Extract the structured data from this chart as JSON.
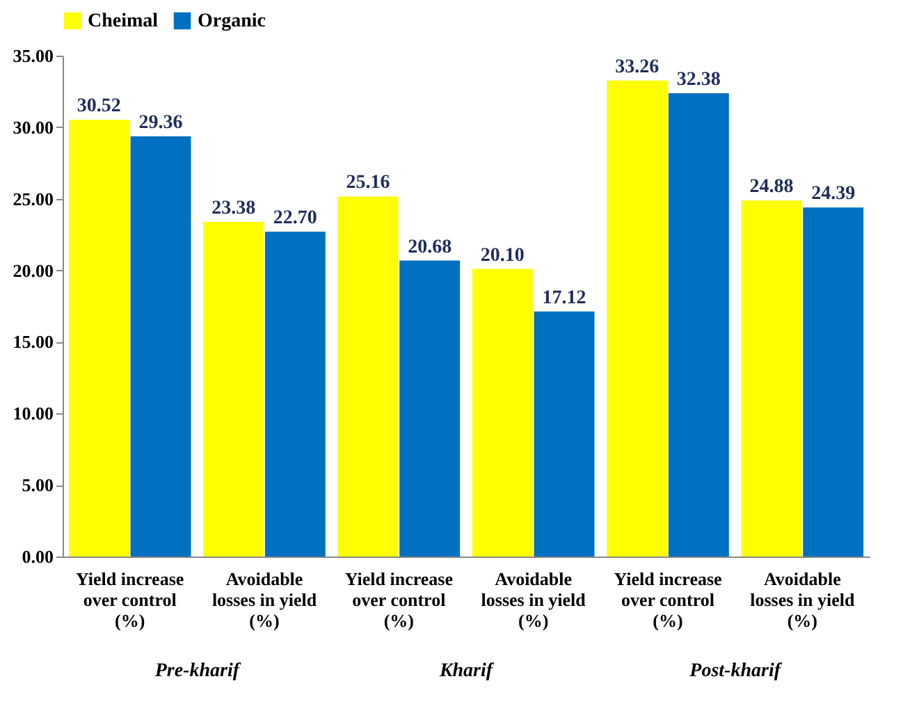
{
  "chart_data": {
    "type": "bar",
    "categories": [
      "Yield increase over control (%)",
      "Avoidable losses in yield (%)",
      "Yield increase over control (%)",
      "Avoidable losses in yield (%)",
      "Yield increase over control (%)",
      "Avoidable losses in yield (%)"
    ],
    "series": [
      {
        "name": "Cheimal",
        "color": "#ffff00",
        "values": [
          30.52,
          23.38,
          25.16,
          20.1,
          33.26,
          24.88
        ],
        "value_labels": [
          "30.52",
          "23.38",
          "25.16",
          "20.10",
          "33.26",
          "24.88"
        ]
      },
      {
        "name": "Organic",
        "color": "#0070c0",
        "values": [
          29.36,
          22.7,
          20.68,
          17.12,
          32.38,
          24.39
        ],
        "value_labels": [
          "29.36",
          "22.70",
          "20.68",
          "17.12",
          "32.38",
          "24.39"
        ]
      }
    ],
    "ylim": [
      0,
      35
    ],
    "yticks": [
      {
        "value": 0,
        "label": "0.00"
      },
      {
        "value": 5,
        "label": "5.00"
      },
      {
        "value": 10,
        "label": "10.00"
      },
      {
        "value": 15,
        "label": "15.00"
      },
      {
        "value": 20,
        "label": "20.00"
      },
      {
        "value": 25,
        "label": "25.00"
      },
      {
        "value": 30,
        "label": "30.00"
      },
      {
        "value": 35,
        "label": "35.00"
      }
    ],
    "annotations": [
      "Pre-kharif",
      "Kharif",
      "Post-kharif"
    ],
    "legend": "top",
    "grid": false
  }
}
